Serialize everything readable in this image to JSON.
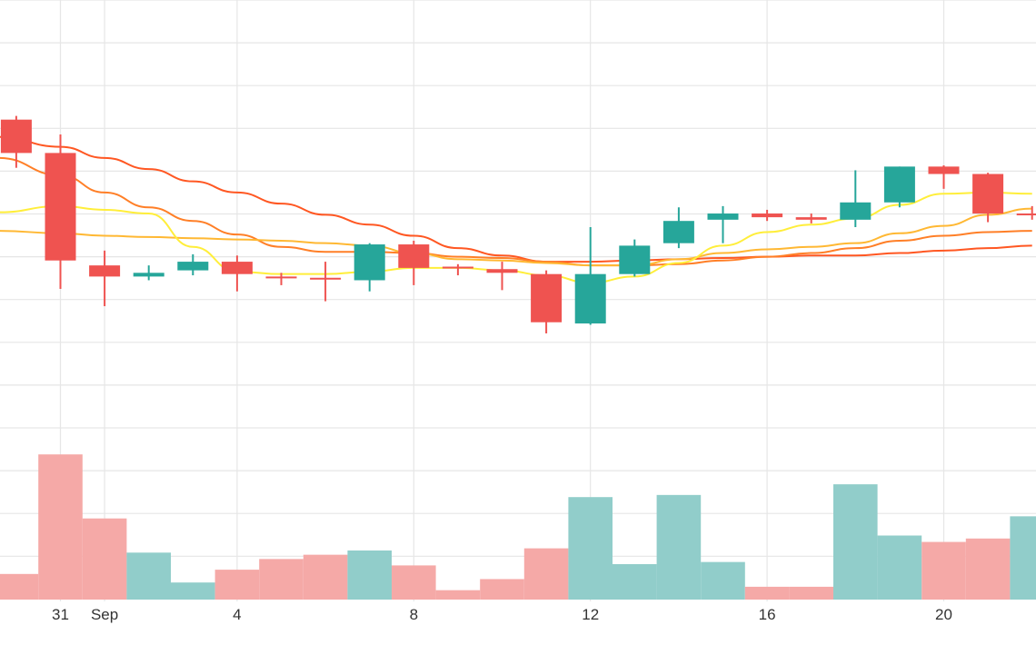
{
  "chart_data": {
    "type": "candlestick",
    "grid": true,
    "colors": {
      "up": "#26a69a",
      "down": "#ef5350",
      "volume_up": "#91cdca",
      "volume_down": "#f5a9a7",
      "grid": "#e6e6e6",
      "ma_lines": [
        "#ff5722",
        "#ff7f27",
        "#ffb833",
        "#ffee3a"
      ]
    },
    "x_tick_labels": [
      {
        "label": "31",
        "day": 0
      },
      {
        "label": "Sep",
        "day": 1
      },
      {
        "label": "4",
        "day": 4
      },
      {
        "label": "8",
        "day": 8
      },
      {
        "label": "12",
        "day": 12
      },
      {
        "label": "16",
        "day": 16
      },
      {
        "label": "20",
        "day": 20
      }
    ],
    "candles": [
      {
        "day": -1,
        "open": 97.0,
        "high": 97.3,
        "low": 93.1,
        "close": 94.3
      },
      {
        "day": 0,
        "open": 94.3,
        "high": 95.8,
        "low": 83.3,
        "close": 85.6
      },
      {
        "day": 1,
        "open": 85.2,
        "high": 86.4,
        "low": 81.9,
        "close": 84.3
      },
      {
        "day": 2,
        "open": 84.3,
        "high": 85.2,
        "low": 84.0,
        "close": 84.6
      },
      {
        "day": 3,
        "open": 84.8,
        "high": 86.1,
        "low": 84.4,
        "close": 85.5
      },
      {
        "day": 4,
        "open": 85.5,
        "high": 86.0,
        "low": 83.1,
        "close": 84.5
      },
      {
        "day": 5,
        "open": 84.3,
        "high": 84.6,
        "low": 83.6,
        "close": 84.2
      },
      {
        "day": 6,
        "open": 84.2,
        "high": 85.5,
        "low": 82.3,
        "close": 84.1
      },
      {
        "day": 7,
        "open": 84.0,
        "high": 87.0,
        "low": 83.1,
        "close": 86.9
      },
      {
        "day": 8,
        "open": 86.9,
        "high": 87.2,
        "low": 83.6,
        "close": 85.0
      },
      {
        "day": 9,
        "open": 85.1,
        "high": 85.3,
        "low": 84.4,
        "close": 85.0
      },
      {
        "day": 10,
        "open": 84.9,
        "high": 85.5,
        "low": 83.2,
        "close": 84.6
      },
      {
        "day": 11,
        "open": 84.5,
        "high": 84.8,
        "low": 79.7,
        "close": 80.6
      },
      {
        "day": 12,
        "open": 80.5,
        "high": 88.3,
        "low": 80.4,
        "close": 84.5
      },
      {
        "day": 13,
        "open": 84.5,
        "high": 87.3,
        "low": 84.3,
        "close": 86.8
      },
      {
        "day": 14,
        "open": 87.0,
        "high": 89.9,
        "low": 86.6,
        "close": 88.8
      },
      {
        "day": 15,
        "open": 88.9,
        "high": 90.0,
        "low": 87.0,
        "close": 89.4
      },
      {
        "day": 16,
        "open": 89.4,
        "high": 89.7,
        "low": 88.8,
        "close": 89.1
      },
      {
        "day": 17,
        "open": 89.1,
        "high": 89.4,
        "low": 88.6,
        "close": 88.9
      },
      {
        "day": 18,
        "open": 88.9,
        "high": 92.9,
        "low": 88.3,
        "close": 90.3
      },
      {
        "day": 19,
        "open": 90.3,
        "high": 93.2,
        "low": 89.9,
        "close": 93.2
      },
      {
        "day": 20,
        "open": 93.2,
        "high": 93.3,
        "low": 91.4,
        "close": 92.6
      },
      {
        "day": 21,
        "open": 92.6,
        "high": 92.7,
        "low": 88.7,
        "close": 89.4
      },
      {
        "day": 22,
        "open": 89.4,
        "high": 90.0,
        "low": 88.9,
        "close": 89.3
      }
    ],
    "volume": [
      {
        "day": -1,
        "value": 6,
        "direction": "down"
      },
      {
        "day": 0,
        "value": 34,
        "direction": "down"
      },
      {
        "day": 1,
        "value": 19,
        "direction": "down"
      },
      {
        "day": 2,
        "value": 11,
        "direction": "up"
      },
      {
        "day": 3,
        "value": 4,
        "direction": "up"
      },
      {
        "day": 4,
        "value": 7,
        "direction": "down"
      },
      {
        "day": 5,
        "value": 9.5,
        "direction": "down"
      },
      {
        "day": 6,
        "value": 10.5,
        "direction": "down"
      },
      {
        "day": 7,
        "value": 11.5,
        "direction": "up"
      },
      {
        "day": 8,
        "value": 8,
        "direction": "down"
      },
      {
        "day": 9,
        "value": 2.2,
        "direction": "down"
      },
      {
        "day": 10,
        "value": 4.8,
        "direction": "down"
      },
      {
        "day": 11,
        "value": 12,
        "direction": "down"
      },
      {
        "day": 12,
        "value": 24,
        "direction": "up"
      },
      {
        "day": 13,
        "value": 8.3,
        "direction": "up"
      },
      {
        "day": 14,
        "value": 24.5,
        "direction": "up"
      },
      {
        "day": 15,
        "value": 8.8,
        "direction": "up"
      },
      {
        "day": 16,
        "value": 3,
        "direction": "down"
      },
      {
        "day": 17,
        "value": 3,
        "direction": "down"
      },
      {
        "day": 18,
        "value": 27,
        "direction": "up"
      },
      {
        "day": 19,
        "value": 15,
        "direction": "up"
      },
      {
        "day": 20,
        "value": 13.5,
        "direction": "down"
      },
      {
        "day": 21,
        "value": 14.3,
        "direction": "down"
      },
      {
        "day": 22,
        "value": 19.5,
        "direction": "up"
      }
    ],
    "moving_averages": [
      {
        "color": "#ff5722",
        "points": [
          [
            -1.4,
            95.6
          ],
          [
            0,
            94.8
          ],
          [
            1,
            93.9
          ],
          [
            2,
            93.0
          ],
          [
            3,
            92.0
          ],
          [
            4,
            91.1
          ],
          [
            5,
            90.2
          ],
          [
            6,
            89.3
          ],
          [
            7,
            88.5
          ],
          [
            8,
            87.6
          ],
          [
            9,
            86.6
          ],
          [
            10,
            86.0
          ],
          [
            11,
            85.5
          ],
          [
            12,
            85.5
          ],
          [
            13,
            85.6
          ],
          [
            14,
            85.7
          ],
          [
            15,
            85.8
          ],
          [
            16,
            85.9
          ],
          [
            17,
            86.0
          ],
          [
            18,
            86.0
          ],
          [
            19,
            86.2
          ],
          [
            20,
            86.4
          ],
          [
            21,
            86.6
          ],
          [
            22,
            86.8
          ]
        ]
      },
      {
        "color": "#ff7f27",
        "points": [
          [
            -1.4,
            93.9
          ],
          [
            0,
            92.5
          ],
          [
            1,
            91.1
          ],
          [
            2,
            89.9
          ],
          [
            3,
            88.8
          ],
          [
            4,
            87.7
          ],
          [
            5,
            86.7
          ],
          [
            6,
            86.3
          ],
          [
            7,
            86.3
          ],
          [
            8,
            86.2
          ],
          [
            9,
            85.9
          ],
          [
            10,
            85.8
          ],
          [
            11,
            85.5
          ],
          [
            12,
            85.2
          ],
          [
            13,
            85.2
          ],
          [
            14,
            85.3
          ],
          [
            15,
            85.6
          ],
          [
            16,
            85.9
          ],
          [
            17,
            86.2
          ],
          [
            18,
            86.6
          ],
          [
            19,
            87.2
          ],
          [
            20,
            87.6
          ],
          [
            21,
            87.9
          ],
          [
            22,
            88.0
          ]
        ]
      },
      {
        "color": "#ffb833",
        "points": [
          [
            -1.4,
            88.0
          ],
          [
            0,
            87.8
          ],
          [
            1,
            87.6
          ],
          [
            2,
            87.5
          ],
          [
            3,
            87.4
          ],
          [
            4,
            87.3
          ],
          [
            5,
            87.2
          ],
          [
            6,
            87.0
          ],
          [
            7,
            86.8
          ],
          [
            8,
            86.2
          ],
          [
            9,
            85.7
          ],
          [
            10,
            85.6
          ],
          [
            11,
            85.4
          ],
          [
            12,
            85.2
          ],
          [
            13,
            85.2
          ],
          [
            14,
            85.7
          ],
          [
            15,
            86.2
          ],
          [
            16,
            86.5
          ],
          [
            17,
            86.7
          ],
          [
            18,
            87.0
          ],
          [
            19,
            87.8
          ],
          [
            20,
            88.4
          ],
          [
            21,
            89.3
          ],
          [
            22,
            89.8
          ]
        ]
      },
      {
        "color": "#ffee3a",
        "points": [
          [
            -1.4,
            89.5
          ],
          [
            0,
            90.0
          ],
          [
            1,
            89.7
          ],
          [
            2,
            89.4
          ],
          [
            3,
            86.7
          ],
          [
            4,
            84.7
          ],
          [
            5,
            84.5
          ],
          [
            6,
            84.5
          ],
          [
            7,
            84.7
          ],
          [
            8,
            85.0
          ],
          [
            9,
            85.0
          ],
          [
            10,
            84.8
          ],
          [
            11,
            84.4
          ],
          [
            12,
            83.8
          ],
          [
            13,
            84.3
          ],
          [
            14,
            85.4
          ],
          [
            15,
            86.8
          ],
          [
            16,
            87.9
          ],
          [
            17,
            88.5
          ],
          [
            18,
            89.0
          ],
          [
            19,
            90.1
          ],
          [
            20,
            91.0
          ],
          [
            21,
            91.1
          ],
          [
            22,
            91.0
          ]
        ]
      }
    ]
  }
}
